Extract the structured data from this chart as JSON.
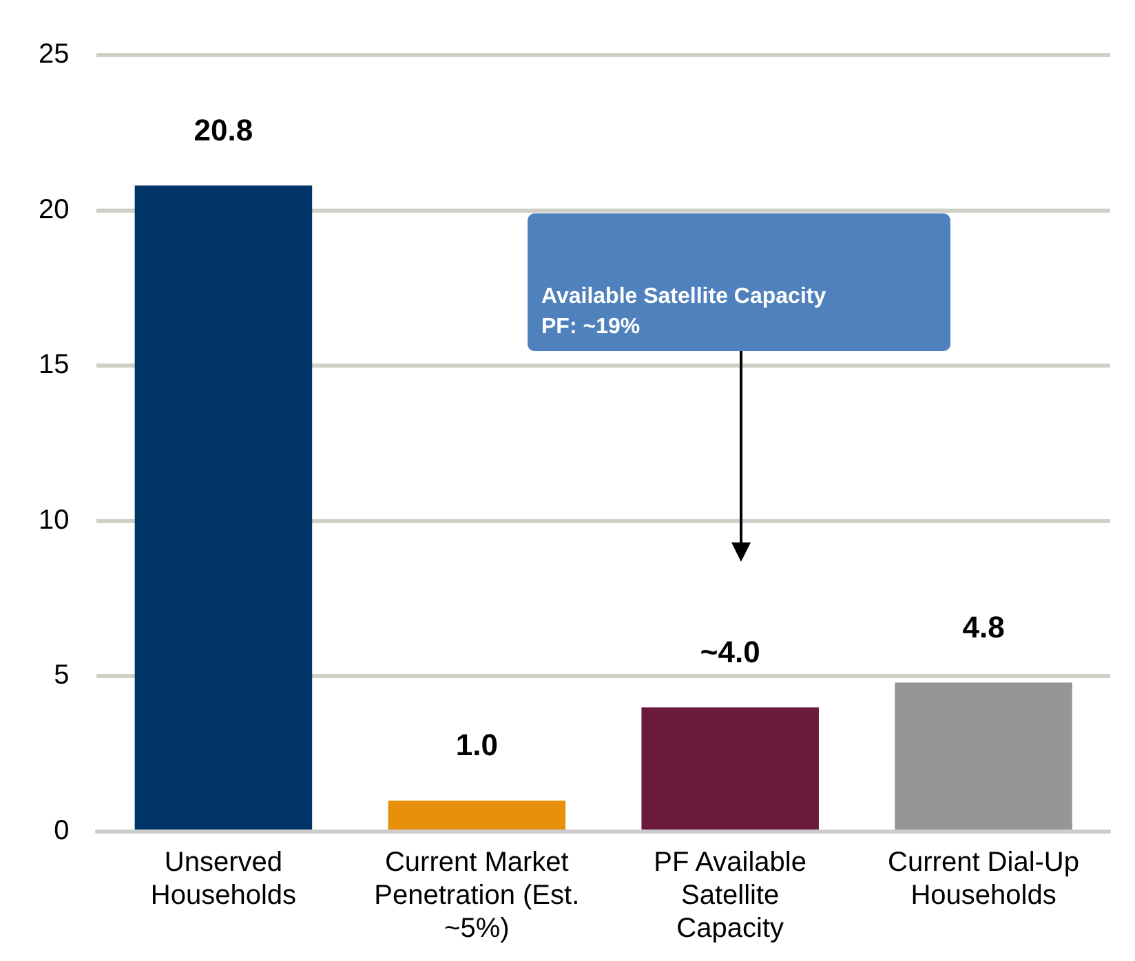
{
  "chart_data": {
    "type": "bar",
    "categories": [
      "Unserved Households",
      "Current Market Penetration (Est. ~5%)",
      "PF Available Satellite Capacity",
      "Current Dial-Up Households"
    ],
    "values": [
      20.8,
      1.0,
      4.0,
      4.8
    ],
    "colors": [
      "#003366",
      "#e8900c",
      "#6b1a3c",
      "#969696"
    ],
    "value_labels": [
      "20.8",
      "1.0",
      "~4.0",
      "4.8"
    ],
    "ylim": [
      0,
      25
    ],
    "yticks": [
      0,
      5,
      10,
      15,
      20,
      25
    ],
    "grid": "y",
    "annotations": [
      "Available Satellite Capacity\nPF: ~19%"
    ]
  }
}
